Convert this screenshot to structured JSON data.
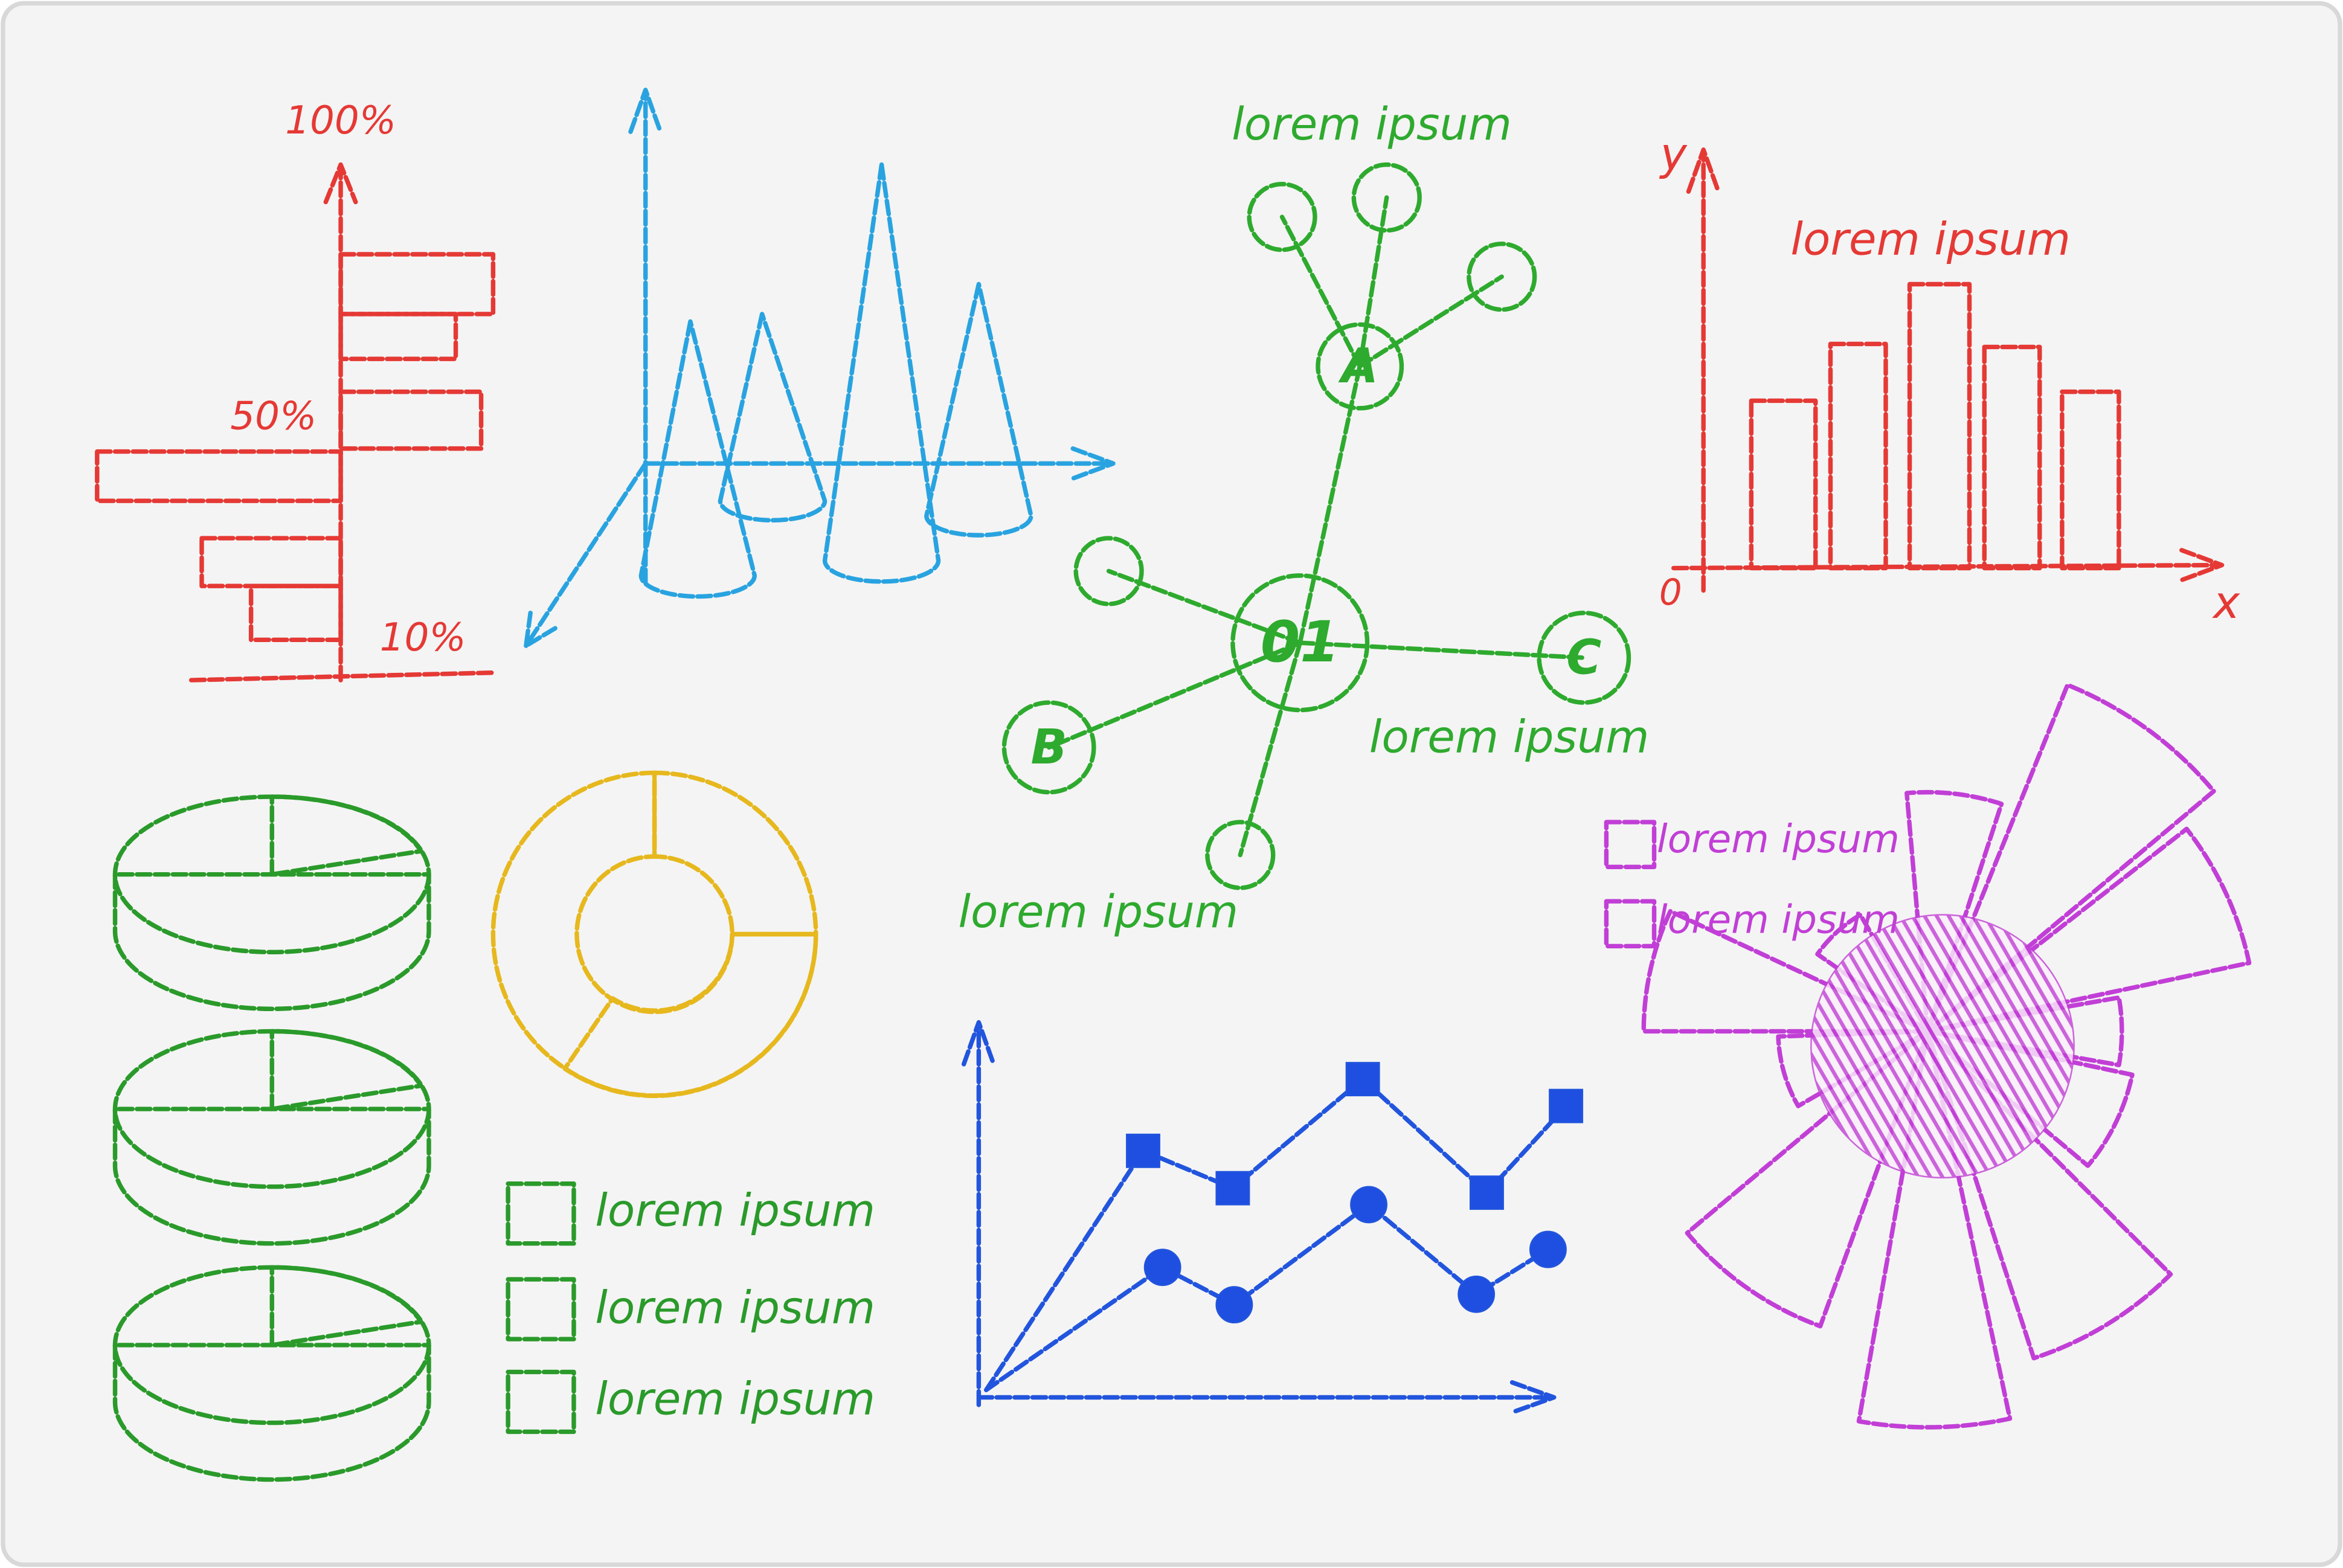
{
  "bar_chart": {
    "labels": [
      "100%",
      "50%",
      "10%"
    ]
  },
  "network": {
    "title": "lorem ipsum",
    "center": "01",
    "nodes": [
      "A",
      "B",
      "C"
    ],
    "captions": [
      "lorem ipsum",
      "lorem ipsum"
    ]
  },
  "column_chart": {
    "y_label": "y",
    "title": "lorem ipsum",
    "origin": "0",
    "x_label": "x"
  },
  "rose_legend": [
    "lorem ipsum",
    "lorem ipsum"
  ],
  "pie_legend": [
    "lorem ipsum",
    "lorem ipsum",
    "lorem ipsum"
  ]
}
